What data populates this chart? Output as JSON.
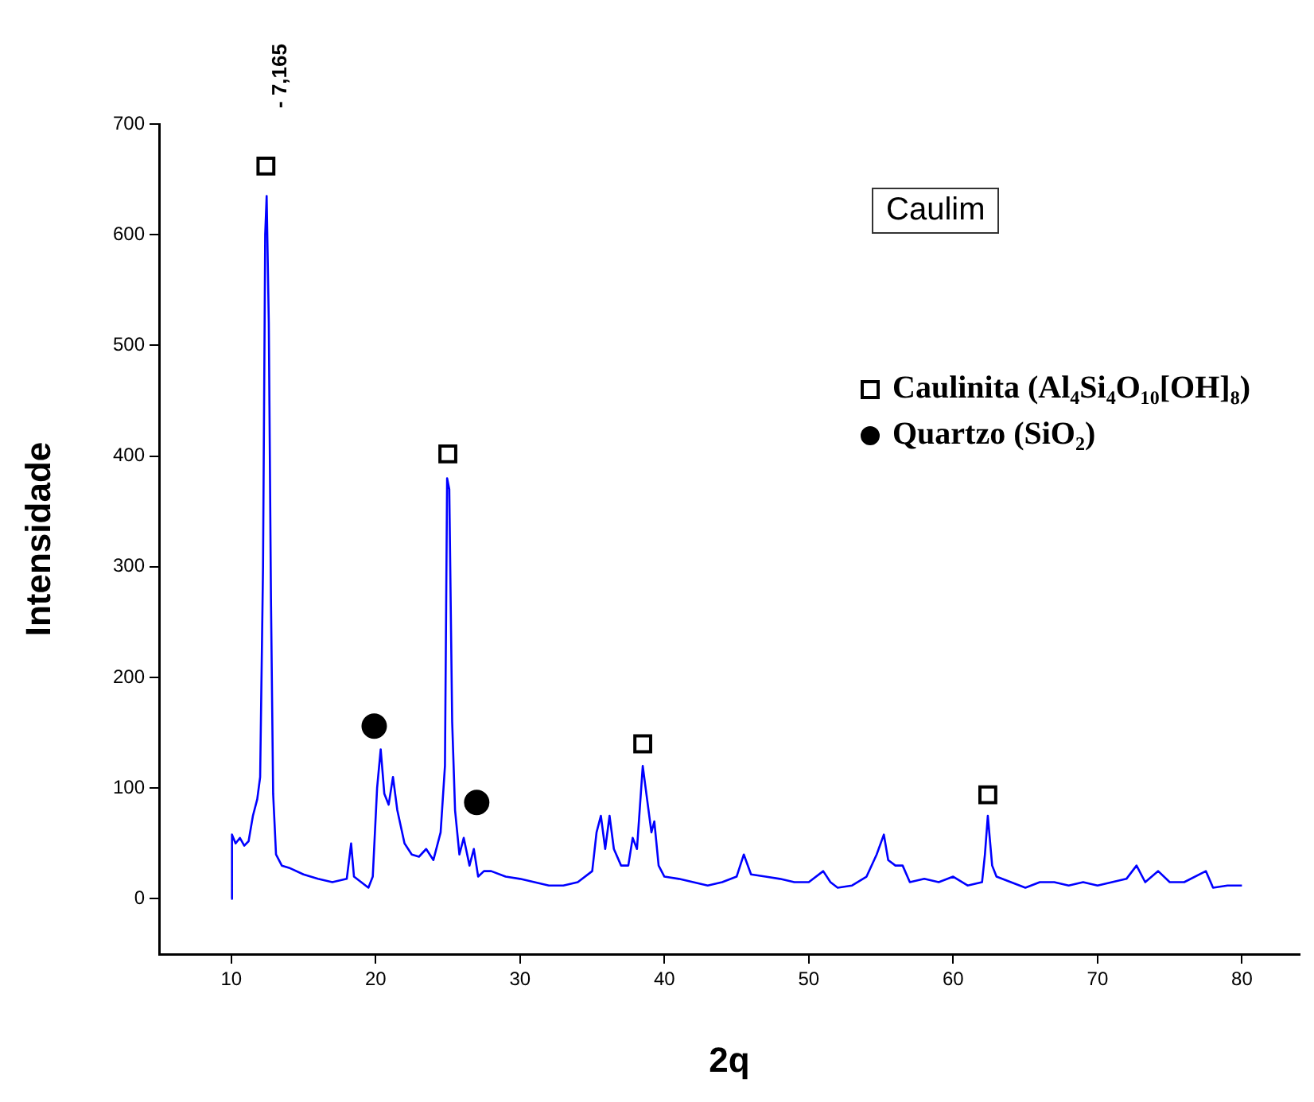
{
  "chart_data": {
    "type": "line",
    "xlabel": "2q",
    "ylabel": "Intensidade",
    "xlim": [
      5,
      84
    ],
    "ylim": [
      -50,
      700
    ],
    "xticks": [
      10,
      20,
      30,
      40,
      50,
      60,
      70,
      80
    ],
    "yticks": [
      0,
      100,
      200,
      300,
      400,
      500,
      600,
      700
    ],
    "legend": "top right",
    "annotations": [
      "Caulim",
      "- 7,165"
    ],
    "series": [
      {
        "type": "line",
        "color": "#0000ff",
        "marker": "none",
        "x": [
          10.0,
          10.05,
          10.3,
          10.6,
          10.9,
          11.2,
          11.5,
          11.8,
          12.0,
          12.2,
          12.35,
          12.45,
          12.6,
          12.75,
          12.9,
          13.1,
          13.5,
          14,
          15,
          16,
          17,
          18,
          18.3,
          18.5,
          19,
          19.5,
          19.8,
          20.1,
          20.35,
          20.6,
          20.9,
          21.2,
          21.5,
          22,
          22.5,
          23,
          23.5,
          24,
          24.5,
          24.8,
          24.95,
          25.1,
          25.3,
          25.5,
          25.8,
          26.1,
          26.5,
          26.8,
          27.1,
          27.5,
          28,
          29,
          30,
          31,
          32,
          33,
          34,
          35,
          35.3,
          35.6,
          35.9,
          36.2,
          36.5,
          37,
          37.5,
          37.8,
          38.1,
          38.5,
          38.8,
          39.1,
          39.3,
          39.6,
          40,
          41,
          42,
          43,
          44,
          45,
          45.5,
          46,
          47,
          48,
          49,
          50,
          51,
          51.5,
          52,
          53,
          54,
          54.7,
          55.2,
          55.5,
          56,
          56.5,
          57,
          58,
          59,
          60,
          61,
          62,
          62.2,
          62.4,
          62.7,
          63,
          64,
          65,
          66,
          67,
          68,
          69,
          70,
          71,
          72,
          72.7,
          73.3,
          74.2,
          75,
          76,
          77.5,
          78,
          79,
          80
        ],
        "values": [
          0,
          58,
          50,
          55,
          48,
          52,
          75,
          90,
          110,
          300,
          600,
          635,
          520,
          270,
          95,
          40,
          30,
          28,
          22,
          18,
          15,
          18,
          50,
          20,
          15,
          10,
          20,
          100,
          135,
          95,
          85,
          110,
          80,
          50,
          40,
          38,
          45,
          35,
          60,
          120,
          380,
          370,
          160,
          80,
          40,
          55,
          30,
          45,
          20,
          25,
          25,
          20,
          18,
          15,
          12,
          12,
          15,
          25,
          60,
          75,
          45,
          75,
          45,
          30,
          30,
          55,
          45,
          120,
          90,
          60,
          70,
          30,
          20,
          18,
          15,
          12,
          15,
          20,
          40,
          22,
          20,
          18,
          15,
          15,
          25,
          15,
          10,
          12,
          20,
          40,
          58,
          35,
          30,
          30,
          15,
          18,
          15,
          20,
          12,
          15,
          40,
          75,
          30,
          20,
          15,
          10,
          15,
          15,
          12,
          15,
          12,
          15,
          18,
          30,
          15,
          25,
          15,
          15,
          25,
          10,
          12,
          12
        ]
      },
      {
        "type": "scatter",
        "name": "Caulinita (Al₄Si₄O₁₀[OH]₈)",
        "color": "#000000",
        "marker": "square",
        "x": [
          12.4,
          25.0,
          38.5,
          62.4
        ],
        "values": [
          662,
          402,
          140,
          94
        ]
      },
      {
        "type": "scatter",
        "name": "Quartzo (SiO₂)",
        "color": "#000000",
        "marker": "circle",
        "x": [
          19.9,
          27.0
        ],
        "values": [
          156,
          87
        ]
      }
    ]
  }
}
